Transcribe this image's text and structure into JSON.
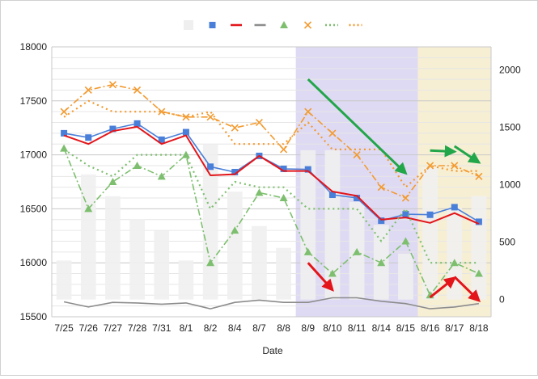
{
  "chart_data": {
    "type": "combo",
    "title": "",
    "xlabel": "Date",
    "ylabel": "",
    "y2label": "",
    "categories": [
      "7/25",
      "7/26",
      "7/27",
      "7/28",
      "7/31",
      "8/1",
      "8/2",
      "8/4",
      "8/7",
      "8/8",
      "8/9",
      "8/10",
      "8/11",
      "8/14",
      "8/15",
      "8/16",
      "8/17",
      "8/18"
    ],
    "ylim": [
      15500,
      18000
    ],
    "yticks": [
      15500,
      16000,
      16500,
      17000,
      17500,
      18000
    ],
    "y2lim": [
      -150,
      2200
    ],
    "y2ticks": [
      0,
      500,
      1000,
      1500,
      2000
    ],
    "grid": true,
    "legend_position": "top",
    "series": [
      {
        "key": "volume",
        "kind": "bar",
        "axis": "right",
        "color": "#efefef",
        "values": [
          340,
          1090,
          900,
          700,
          600,
          340,
          1350,
          940,
          640,
          450,
          1300,
          1300,
          850,
          650,
          400,
          1150,
          800,
          900
        ]
      },
      {
        "key": "close",
        "kind": "line",
        "axis": "left",
        "color": "#4a7fd9",
        "marker": "square",
        "values": [
          17200,
          17160,
          17240,
          17290,
          17140,
          17210,
          16890,
          16840,
          16990,
          16870,
          16865,
          16630,
          16600,
          16390,
          16450,
          16445,
          16515,
          16380
        ]
      },
      {
        "key": "ma_red",
        "kind": "line",
        "axis": "left",
        "color": "#e3151a",
        "values": [
          17180,
          17100,
          17220,
          17260,
          17100,
          17180,
          16810,
          16820,
          16990,
          16850,
          16850,
          16660,
          16620,
          16400,
          16420,
          16370,
          16460,
          16360
        ]
      },
      {
        "key": "gray_line",
        "kind": "line",
        "axis": "right",
        "color": "#8c8c8c",
        "values": [
          -20,
          -65,
          -25,
          -30,
          -40,
          -30,
          -80,
          -25,
          -5,
          -25,
          -25,
          15,
          15,
          -15,
          -35,
          -80,
          -65,
          -35
        ]
      },
      {
        "key": "green_triangle",
        "kind": "line",
        "axis": "left",
        "color": "#7dbf6e",
        "marker": "triangle",
        "dash": "dashdot",
        "values": [
          17060,
          16500,
          16750,
          16900,
          16800,
          17000,
          16000,
          16300,
          16650,
          16600,
          16100,
          15900,
          16100,
          16000,
          16200,
          15700,
          16000,
          15900
        ]
      },
      {
        "key": "orange_x",
        "kind": "line",
        "axis": "left",
        "color": "#f39a2f",
        "marker": "x",
        "dash": "dashdot",
        "values": [
          17400,
          17600,
          17650,
          17600,
          17400,
          17350,
          17350,
          17250,
          17300,
          17050,
          17400,
          17200,
          17000,
          16700,
          16600,
          16900,
          16900,
          16800
        ]
      },
      {
        "key": "green_dotted",
        "kind": "line",
        "axis": "left",
        "color": "#7dbf6e",
        "dash": "dot",
        "values": [
          17050,
          16900,
          16800,
          17000,
          17000,
          17000,
          16500,
          16750,
          16700,
          16700,
          16500,
          16500,
          16500,
          16200,
          16500,
          16000,
          16000,
          16000
        ]
      },
      {
        "key": "orange_dotted",
        "kind": "line",
        "axis": "left",
        "color": "#f39a2f",
        "dash": "dot",
        "values": [
          17350,
          17500,
          17400,
          17400,
          17400,
          17350,
          17400,
          17100,
          17100,
          17100,
          17300,
          17050,
          17050,
          17050,
          16700,
          16900,
          16850,
          16850
        ]
      }
    ],
    "shaded_regions": [
      {
        "from": "8/9",
        "to": "8/15",
        "color": "#d9d4f1"
      },
      {
        "from": "8/16",
        "to": "8/18",
        "color": "#f6eccc"
      }
    ],
    "trend_arrows": [
      {
        "color": "#22a64a",
        "from": [
          "8/9",
          17700
        ],
        "to": [
          "8/15",
          16830
        ]
      },
      {
        "color": "#22a64a",
        "from": [
          "8/16",
          17040
        ],
        "to": [
          "8/17",
          17030
        ]
      },
      {
        "color": "#22a64a",
        "from": [
          "8/17",
          17080
        ],
        "to": [
          "8/18",
          16930
        ]
      },
      {
        "color": "#e3151a",
        "from": [
          "8/9",
          16000
        ],
        "to": [
          "8/10",
          15750
        ]
      },
      {
        "color": "#e3151a",
        "from": [
          "8/16",
          15680
        ],
        "to": [
          "8/17",
          15860
        ]
      },
      {
        "color": "#e3151a",
        "from": [
          "8/17",
          15870
        ],
        "to": [
          "8/18",
          15650
        ]
      }
    ]
  }
}
